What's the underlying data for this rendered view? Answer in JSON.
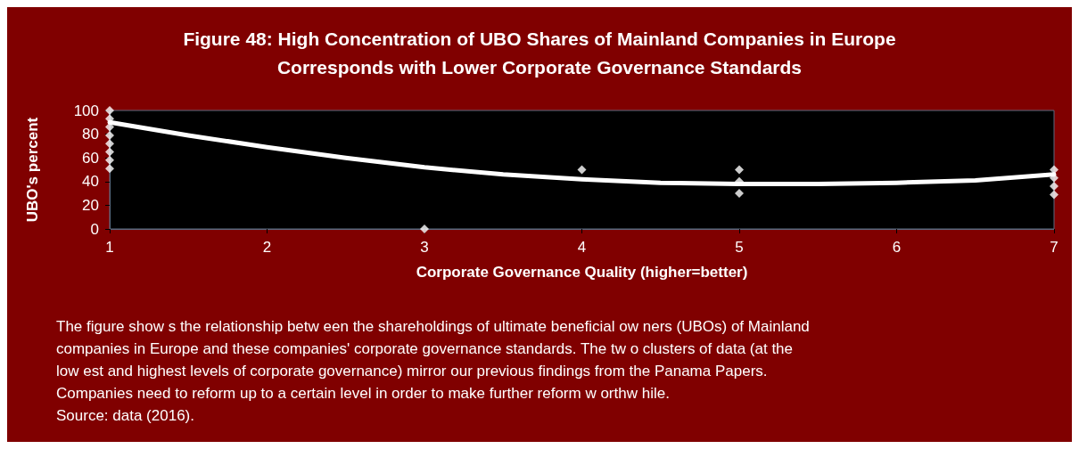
{
  "chart_data": {
    "type": "scatter",
    "title": "Figure 48: High Concentration of UBO Shares of Mainland Companies in Europe\nCorresponds with Lower Corporate Governance Standards",
    "xlabel": "Corporate Governance Quality (higher=better)",
    "ylabel": "UBO's percent",
    "xlim": [
      1,
      7
    ],
    "xticks": [
      1,
      2,
      3,
      4,
      5,
      6,
      7
    ],
    "ylim": [
      0,
      100
    ],
    "yticks": [
      0,
      20,
      40,
      60,
      80,
      100
    ],
    "grid": false,
    "marker": "diamond",
    "series": [
      {
        "color": "#ffffff",
        "x": [
          1,
          1,
          1,
          1,
          1,
          1,
          1,
          1,
          3,
          4,
          5,
          5,
          5,
          7,
          7,
          7,
          7
        ],
        "values": [
          100,
          93,
          86,
          79,
          72,
          65,
          58,
          51,
          0,
          50,
          50,
          40,
          30,
          50,
          43,
          36,
          29
        ]
      },
      {
        "type": "line",
        "color": "#ffffff",
        "marker": "none",
        "x": [
          1,
          1.5,
          2,
          2.5,
          3,
          3.5,
          4,
          4.5,
          5,
          5.5,
          6,
          6.5,
          7
        ],
        "values": [
          90,
          79,
          69,
          60,
          52,
          46,
          42,
          39,
          38,
          38,
          39,
          41,
          46
        ]
      }
    ],
    "annotations": [
      "The figure show s the relationship betw een the shareholdings of ultimate beneficial ow ners (UBOs) of Mainland",
      "companies in Europe and these companies' corporate governance standards. The tw o clusters of data (at the",
      "low est and highest levels of corporate governance) mirror our previous findings from the Panama Papers.",
      "Companies need to reform up to a certain level in order to make further reform w orthw hile.",
      "Source: data (2016)."
    ]
  }
}
